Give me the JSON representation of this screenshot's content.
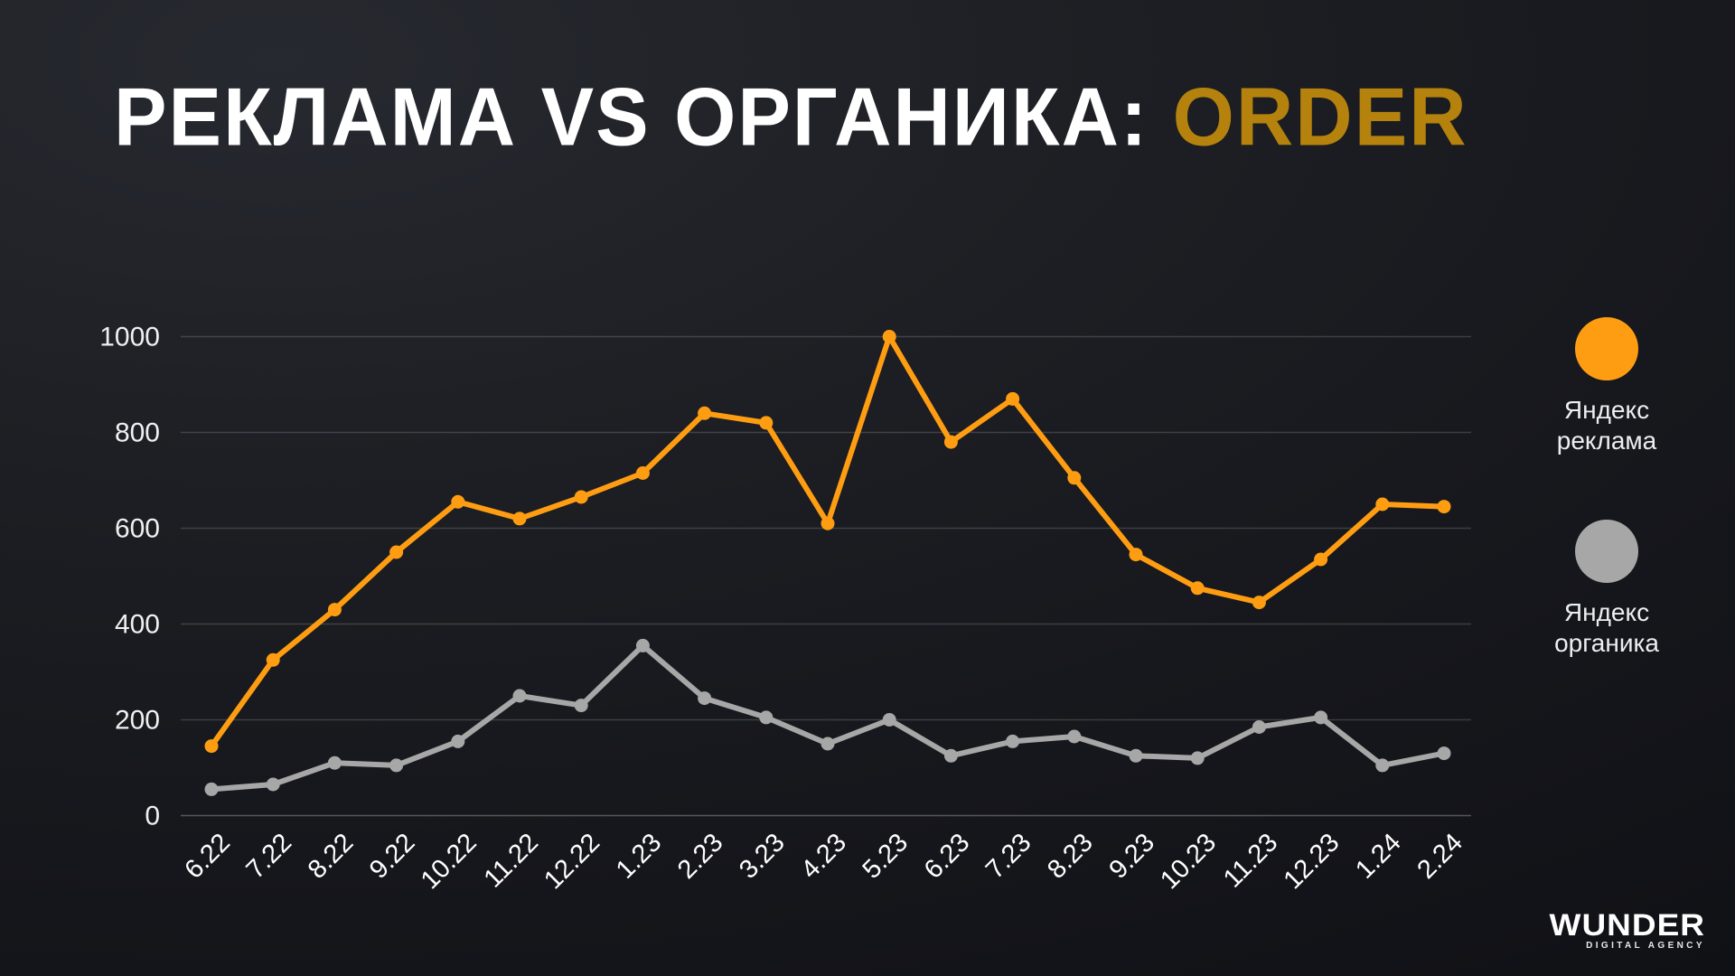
{
  "title": {
    "prefix": "РЕКЛАМА VS ОРГАНИКА: ",
    "highlight": "ORDER"
  },
  "legend": [
    {
      "name": "Яндекс\nреклама",
      "color": "#ff9d12"
    },
    {
      "name": "Яндекс\nорганика",
      "color": "#a7a7a7"
    }
  ],
  "logo": {
    "name": "WUNDER",
    "tagline": "DIGITAL AGENCY"
  },
  "colors": {
    "background": "#17181d",
    "title_text": "#ffffff",
    "title_highlight": "#b5830d",
    "gridline": "rgba(255,255,255,0.16)",
    "axis_text": "#ffffff"
  },
  "chart_data": {
    "type": "line",
    "title": "РЕКЛАМА VS ОРГАНИКА: ORDER",
    "categories": [
      "6.22",
      "7.22",
      "8.22",
      "9.22",
      "10.22",
      "11.22",
      "12.22",
      "1.23",
      "2.23",
      "3.23",
      "4.23",
      "5.23",
      "6.23",
      "7.23",
      "8.23",
      "9.23",
      "10.23",
      "11.23",
      "12.23",
      "1.24",
      "2.24"
    ],
    "series": [
      {
        "name": "Яндекс реклама",
        "color": "#ff9d12",
        "values": [
          145,
          325,
          430,
          550,
          655,
          620,
          665,
          715,
          840,
          820,
          610,
          1000,
          780,
          870,
          705,
          545,
          475,
          445,
          535,
          650,
          645
        ]
      },
      {
        "name": "Яндекс органика",
        "color": "#a7a7a7",
        "values": [
          55,
          65,
          110,
          105,
          155,
          250,
          230,
          355,
          245,
          205,
          150,
          200,
          125,
          155,
          165,
          125,
          120,
          185,
          205,
          105,
          130
        ]
      }
    ],
    "xlabel": "",
    "ylabel": "",
    "ylim": [
      0,
      1000
    ],
    "yticks": [
      0,
      200,
      400,
      600,
      800,
      1000
    ],
    "grid": "horizontal",
    "legend_position": "right"
  }
}
